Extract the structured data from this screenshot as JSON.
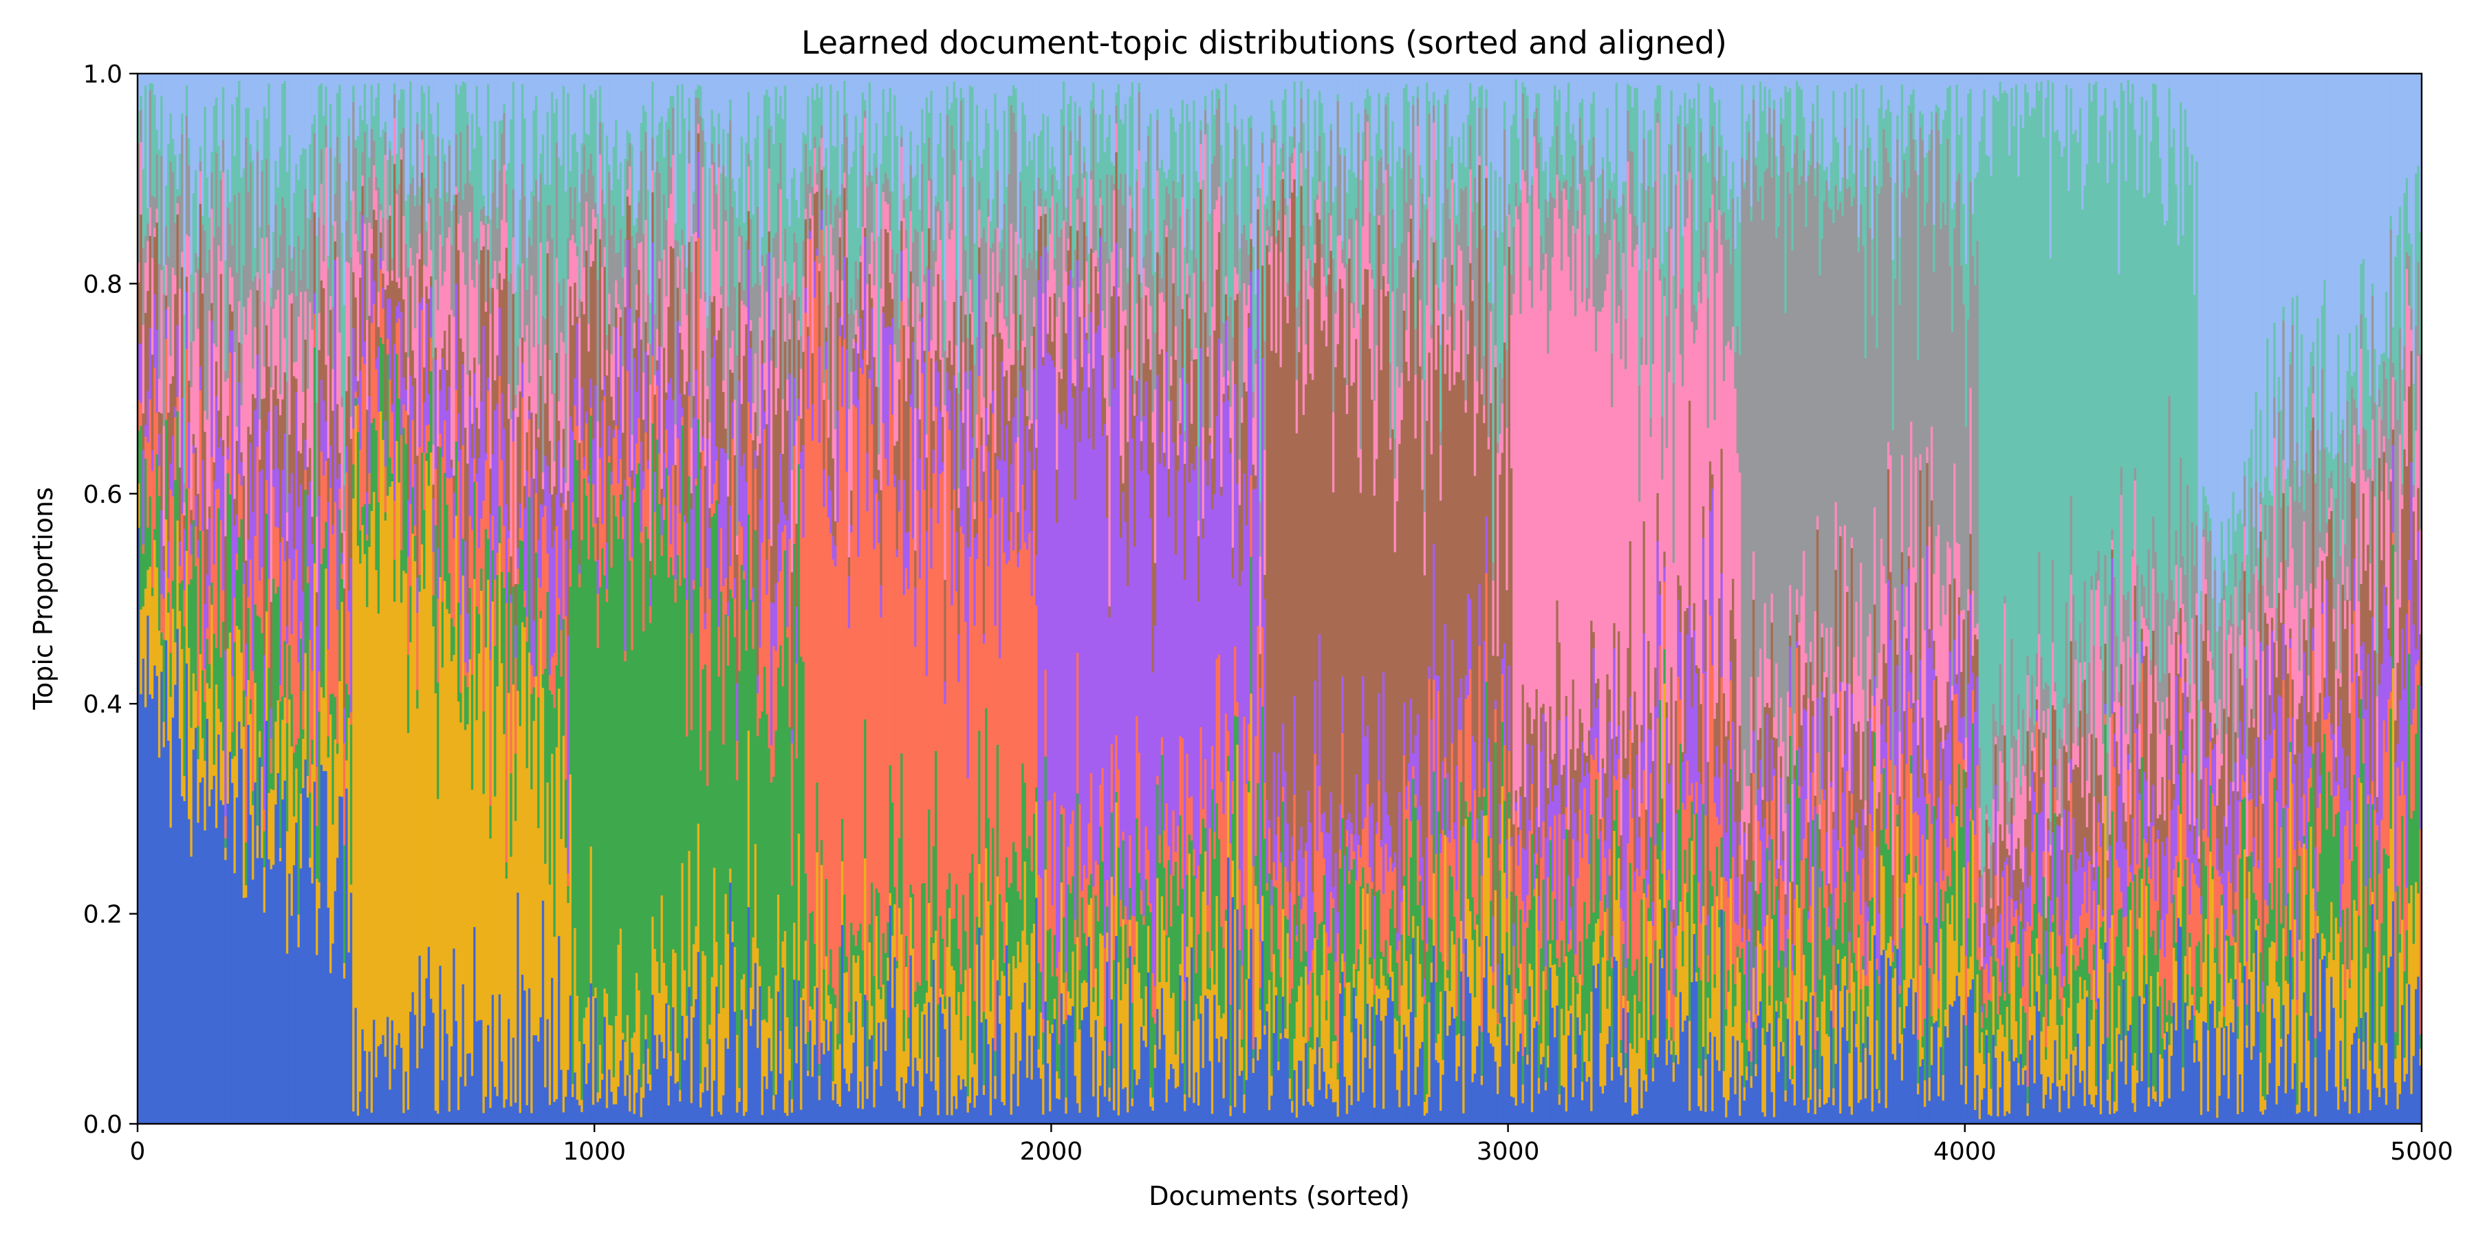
{
  "chart_data": {
    "type": "area",
    "title": "Learned document-topic distributions (sorted and aligned)",
    "xlabel": "Documents (sorted)",
    "ylabel": "Topic Proportions",
    "xlim": [
      0,
      5000
    ],
    "ylim": [
      0,
      1.0
    ],
    "xticks": [
      0,
      1000,
      2000,
      3000,
      4000,
      5000
    ],
    "yticks": [
      0.0,
      0.2,
      0.4,
      0.6,
      0.8,
      1.0
    ],
    "xtick_labels": [
      "0",
      "1000",
      "2000",
      "3000",
      "4000",
      "5000"
    ],
    "ytick_labels": [
      "0.0",
      "0.2",
      "0.4",
      "0.6",
      "0.8",
      "1.0"
    ],
    "grid": false,
    "legend": "none",
    "stack_order_bottom_to_top": [
      0,
      1,
      2,
      3,
      4,
      5,
      6,
      7,
      8,
      9
    ],
    "series": [
      {
        "color": "#4169d4",
        "dominant_range": [
          0,
          470
        ]
      },
      {
        "color": "#ebb01b",
        "dominant_range": [
          470,
          950
        ]
      },
      {
        "color": "#3ea84c",
        "dominant_range": [
          950,
          1460
        ]
      },
      {
        "color": "#fd7157",
        "dominant_range": [
          1460,
          1970
        ]
      },
      {
        "color": "#a45ef0",
        "dominant_range": [
          1970,
          2470
        ]
      },
      {
        "color": "#a86b52",
        "dominant_range": [
          2470,
          3010
        ]
      },
      {
        "color": "#fe8bbc",
        "dominant_range": [
          3010,
          3510
        ]
      },
      {
        "color": "#96989b",
        "dominant_range": [
          3510,
          4030
        ]
      },
      {
        "color": "#69c3b1",
        "dominant_range": [
          4030,
          4510
        ]
      },
      {
        "color": "#97bbf4",
        "dominant_range": [
          4510,
          5000
        ]
      }
    ],
    "dominant_share_start_end": [
      [
        0.47,
        0.21
      ],
      [
        0.62,
        0.24
      ],
      [
        0.58,
        0.26
      ],
      [
        0.59,
        0.27
      ],
      [
        0.54,
        0.27
      ],
      [
        0.6,
        0.29
      ],
      [
        0.57,
        0.28
      ],
      [
        0.56,
        0.3
      ],
      [
        0.66,
        0.36
      ],
      [
        0.51,
        0.19
      ]
    ]
  }
}
